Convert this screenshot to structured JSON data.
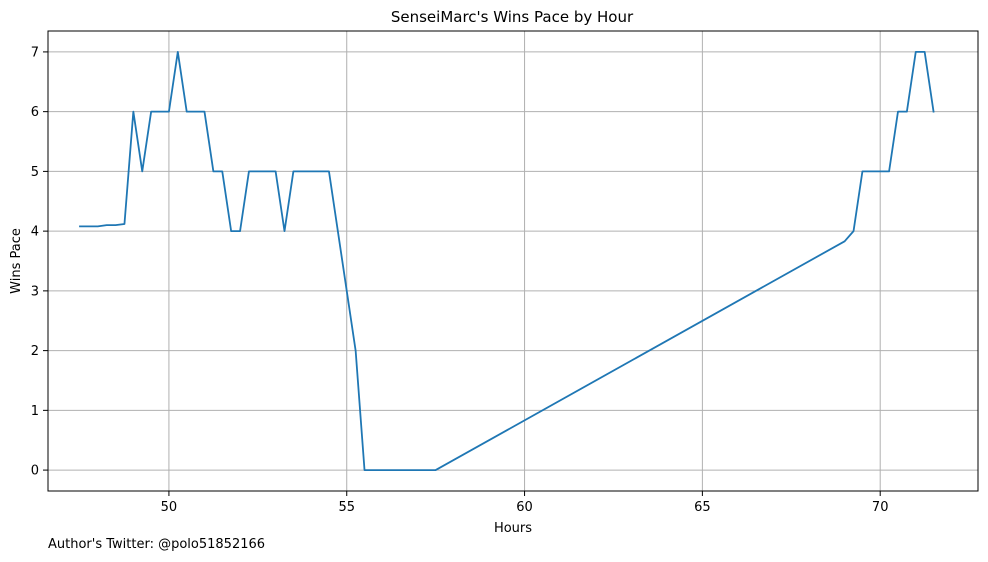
{
  "chart_data": {
    "type": "line",
    "title": "SenseiMarc's Wins Pace by Hour",
    "xlabel": "Hours",
    "ylabel": "Wins Pace",
    "xlim": [
      46.6,
      72.75
    ],
    "ylim": [
      -0.35,
      7.35
    ],
    "xticks": [
      50,
      55,
      60,
      65,
      70
    ],
    "yticks": [
      0,
      1,
      2,
      3,
      4,
      5,
      6,
      7
    ],
    "grid": true,
    "series_color": "#1f77b4",
    "series": [
      {
        "x": [
          47.5,
          47.75,
          48.0,
          48.25,
          48.5,
          48.75,
          49.0,
          49.25,
          49.5,
          49.75,
          50.0,
          50.25,
          50.5,
          50.75,
          51.0,
          51.25,
          51.5,
          51.75,
          52.0,
          52.25,
          52.5,
          52.75,
          53.0,
          53.25,
          53.5,
          53.75,
          54.0,
          54.25,
          54.5,
          55.25,
          55.5,
          57.5,
          69.0,
          69.25,
          69.5,
          69.75,
          70.0,
          70.25,
          70.5,
          70.75,
          71.0,
          71.25,
          71.5
        ],
        "values": [
          4.08,
          4.08,
          4.08,
          4.1,
          4.1,
          4.12,
          6.0,
          5.0,
          6.0,
          6.0,
          6.0,
          7.0,
          6.0,
          6.0,
          6.0,
          5.0,
          5.0,
          4.0,
          4.0,
          5.0,
          5.0,
          5.0,
          5.0,
          4.0,
          5.0,
          5.0,
          5.0,
          5.0,
          5.0,
          2.0,
          0.0,
          0.0,
          3.83,
          4.0,
          5.0,
          5.0,
          5.0,
          5.0,
          6.0,
          6.0,
          7.0,
          7.0,
          6.0
        ]
      }
    ]
  },
  "footnote": "Author's Twitter: @polo51852166"
}
